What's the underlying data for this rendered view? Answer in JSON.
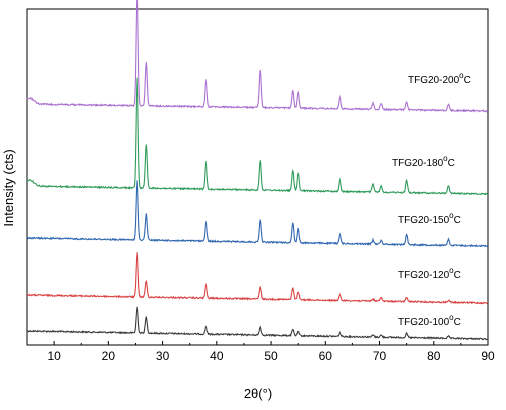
{
  "chart_data": {
    "type": "line",
    "xlabel": "2θ(°)",
    "ylabel": "Intensity (cts)",
    "xlim": [
      5,
      90
    ],
    "xticks": [
      "10",
      "20",
      "30",
      "40",
      "50",
      "60",
      "70",
      "80",
      "90"
    ],
    "grid": false,
    "peaks_2theta": [
      25.3,
      27.0,
      38.0,
      48.0,
      54.0,
      55.0,
      62.7,
      68.8,
      70.3,
      75.0,
      82.7
    ],
    "series": [
      {
        "name": "TFG20-100",
        "label_main": "TFG20-100",
        "label_sup": "o",
        "label_unit": "C",
        "color": "#3a3a3a",
        "baseline": 0.22,
        "offset": 0.0,
        "peak_heights": [
          13,
          8,
          4,
          4,
          3,
          2,
          2,
          1,
          1,
          2,
          1
        ]
      },
      {
        "name": "TFG20-120",
        "label_main": "TFG20-120",
        "label_sup": "o",
        "label_unit": "C",
        "color": "#d94040",
        "baseline": 0.12,
        "offset": 1.0,
        "peak_heights": [
          22,
          8,
          7,
          6,
          6,
          4,
          3,
          1,
          2,
          2,
          1
        ]
      },
      {
        "name": "TFG20-150",
        "label_main": "TFG20-150",
        "label_sup": "o",
        "label_unit": "C",
        "color": "#2f66b0",
        "baseline": 0.12,
        "offset": 2.0,
        "peak_heights": [
          30,
          13,
          10,
          11,
          10,
          7,
          5,
          2,
          2,
          5,
          3
        ]
      },
      {
        "name": "TFG20-180",
        "label_main": "TFG20-180",
        "label_sup": "o",
        "label_unit": "C",
        "color": "#2e9a5a",
        "baseline": 0.45,
        "offset": 3.0,
        "peak_heights": [
          55,
          22,
          14,
          15,
          10,
          9,
          6,
          4,
          3,
          6,
          4
        ]
      },
      {
        "name": "TFG20-200",
        "label_main": "TFG20-200",
        "label_sup": "o",
        "label_unit": "C",
        "color": "#a970d0",
        "baseline": 0.5,
        "offset": 4.0,
        "peak_heights": [
          58,
          22,
          14,
          19,
          9,
          8,
          6,
          3,
          3,
          4,
          3
        ]
      }
    ]
  }
}
